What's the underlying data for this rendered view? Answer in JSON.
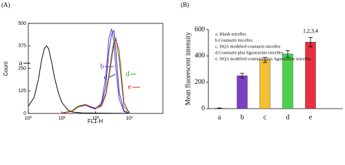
{
  "chart_data": [
    {
      "type": "line",
      "panel_label": "(A)",
      "xlabel": "FL1-H",
      "ylabel": "Count",
      "xscale": "log",
      "xlim": [
        1,
        10000
      ],
      "ylim": [
        0,
        500
      ],
      "xticks": [
        {
          "value": 1,
          "label": "10⁰"
        },
        {
          "value": 10,
          "label": "10¹"
        },
        {
          "value": 100,
          "label": "10²"
        },
        {
          "value": 1000,
          "label": "10³"
        }
      ],
      "yticks": [
        0,
        125,
        250,
        375,
        500
      ],
      "series": [
        {
          "name": "a",
          "color": "#000000",
          "x": [
            1,
            1.5,
            2,
            2.5,
            3,
            3.5,
            4,
            5,
            6,
            8,
            10,
            15,
            20,
            40,
            100,
            1000
          ],
          "values": [
            40,
            90,
            190,
            300,
            360,
            375,
            360,
            280,
            200,
            110,
            60,
            20,
            8,
            3,
            2,
            0
          ]
        },
        {
          "name": "b",
          "color": "#7030c0",
          "x": [
            10,
            20,
            30,
            50,
            80,
            100,
            150,
            200,
            250,
            300,
            350,
            400,
            500,
            700,
            1000
          ],
          "values": [
            2,
            15,
            40,
            50,
            30,
            25,
            60,
            200,
            420,
            470,
            400,
            250,
            80,
            10,
            0
          ]
        },
        {
          "name": "c",
          "color": "#2030d0",
          "x": [
            10,
            20,
            30,
            50,
            80,
            100,
            150,
            200,
            250,
            300,
            350,
            400,
            500,
            700,
            1000
          ],
          "values": [
            2,
            12,
            35,
            45,
            30,
            25,
            50,
            150,
            350,
            440,
            460,
            350,
            120,
            15,
            0
          ]
        },
        {
          "name": "d",
          "color": "#20a020",
          "x": [
            10,
            20,
            30,
            50,
            80,
            100,
            150,
            200,
            250,
            300,
            350,
            400,
            500,
            700,
            1000
          ],
          "values": [
            2,
            15,
            40,
            50,
            35,
            30,
            45,
            110,
            220,
            330,
            400,
            420,
            300,
            40,
            0
          ]
        },
        {
          "name": "e",
          "color": "#e02020",
          "x": [
            10,
            20,
            30,
            50,
            80,
            100,
            150,
            200,
            250,
            300,
            350,
            400,
            500,
            700,
            1000
          ],
          "values": [
            2,
            12,
            35,
            48,
            35,
            28,
            40,
            100,
            200,
            300,
            380,
            410,
            350,
            60,
            2
          ]
        }
      ]
    },
    {
      "type": "bar",
      "panel_label": "(B)",
      "ylabel": "Mean fluorescent intensity",
      "categories": [
        "a",
        "b",
        "c",
        "d",
        "e"
      ],
      "values": [
        3,
        250,
        370,
        415,
        505
      ],
      "errors": [
        2,
        18,
        20,
        25,
        35
      ],
      "colors": [
        "#808080",
        "#7b3fc4",
        "#f5c030",
        "#4cd04c",
        "#e83040"
      ],
      "ylim": [
        0,
        600
      ],
      "yticks": [
        0,
        200,
        400,
        600
      ],
      "legend": [
        "a. Blank micelles",
        "b.Coumarin micelles",
        "c. DQA modified coumarin micelles",
        "d.Coumarin plus ligustrazine micelles",
        "e. DQA modified coumarin plus ligustrazine micelles"
      ],
      "annotation": "1,2,3,4"
    }
  ]
}
